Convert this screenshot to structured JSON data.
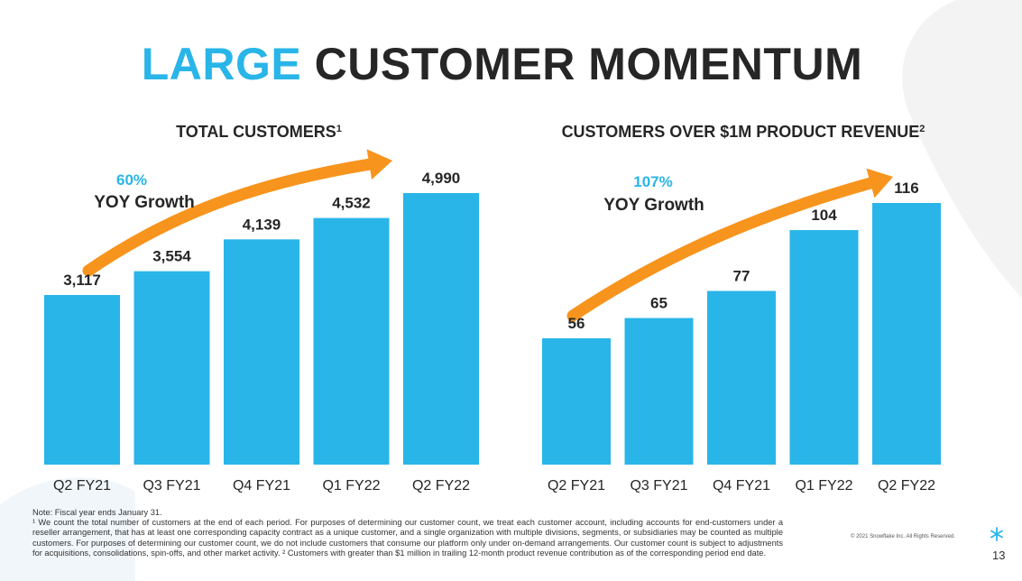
{
  "title": {
    "accent": "LARGE",
    "rest": "CUSTOMER MOMENTUM"
  },
  "colors": {
    "accent": "#29b5e8",
    "arrow": "#f7941d",
    "text": "#262626"
  },
  "chart_data": [
    {
      "type": "bar",
      "title": "TOTAL CUSTOMERS",
      "title_sup": "1",
      "categories": [
        "Q2 FY21",
        "Q3 FY21",
        "Q4 FY21",
        "Q1 FY22",
        "Q2 FY22"
      ],
      "values": [
        3117,
        3554,
        4139,
        4532,
        4990
      ],
      "value_labels": [
        "3,117",
        "3,554",
        "4,139",
        "4,532",
        "4,990"
      ],
      "ylim": [
        0,
        6300
      ],
      "growth": {
        "pct": "60%",
        "label": "YOY Growth"
      },
      "xlabel": "",
      "ylabel": ""
    },
    {
      "type": "bar",
      "title": "CUSTOMERS OVER $1M PRODUCT REVENUE",
      "title_sup": "2",
      "categories": [
        "Q2 FY21",
        "Q3 FY21",
        "Q4 FY21",
        "Q1 FY22",
        "Q2 FY22"
      ],
      "values": [
        56,
        65,
        77,
        104,
        116
      ],
      "value_labels": [
        "56",
        "65",
        "77",
        "104",
        "116"
      ],
      "ylim": [
        0,
        144
      ],
      "growth": {
        "pct": "107%",
        "label": "YOY Growth"
      },
      "xlabel": "",
      "ylabel": ""
    }
  ],
  "footnote": {
    "line1": "Note: Fiscal year ends January 31.",
    "line2": "¹ We count the total number of customers at the end of each period. For purposes of determining our customer count, we treat each customer account, including accounts for end-customers under a reseller arrangement, that has at least one corresponding capacity contract as a unique customer, and a single organization with multiple divisions, segments, or subsidiaries may be counted as multiple customers. For purposes of determining our customer count, we do not include customers that consume our platform only under on-demand arrangements. Our customer count is subject to adjustments for acquisitions, consolidations, spin-offs, and other market activity. ² Customers with greater than $1 million in trailing 12-month product revenue contribution as of the corresponding period end date."
  },
  "copyright": "© 2021 Snowflake Inc. All Rights Reserved.",
  "page_number": "13"
}
